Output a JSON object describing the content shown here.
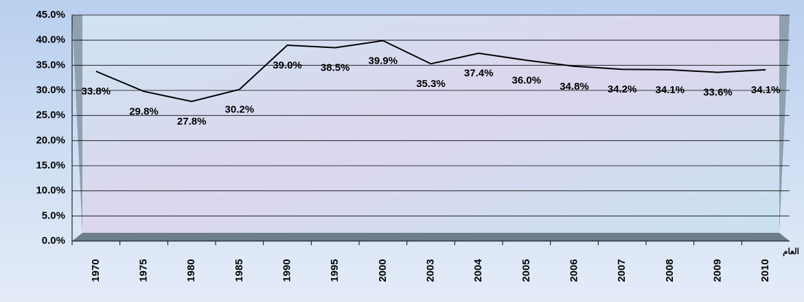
{
  "chart_data": {
    "type": "line",
    "x_label": "العام",
    "categories": [
      "1970",
      "1975",
      "1980",
      "1985",
      "1990",
      "1995",
      "2000",
      "2003",
      "2004",
      "2005",
      "2006",
      "2007",
      "2008",
      "2009",
      "2010"
    ],
    "series": [
      {
        "color": "#000000",
        "values": [
          33.8,
          29.8,
          27.8,
          30.2,
          39.0,
          38.5,
          39.9,
          35.3,
          37.4,
          36.0,
          34.8,
          34.2,
          34.1,
          33.6,
          34.1
        ],
        "value_labels": [
          "33.8%",
          "29.8%",
          "27.8%",
          "30.2%",
          "39.0%",
          "38.5%",
          "39.9%",
          "35.3%",
          "37.4%",
          "36.0%",
          "34.8%",
          "34.2%",
          "34.1%",
          "33.6%",
          "34.1%"
        ]
      }
    ],
    "ylim": [
      0,
      45
    ],
    "yticks": [
      {
        "value": 0,
        "label": "0.0%"
      },
      {
        "value": 5,
        "label": "5.0%"
      },
      {
        "value": 10,
        "label": "10.0%"
      },
      {
        "value": 15,
        "label": "15.0%"
      },
      {
        "value": 20,
        "label": "20.0%"
      },
      {
        "value": 25,
        "label": "25.0%"
      },
      {
        "value": 30,
        "label": "30.0%"
      },
      {
        "value": 35,
        "label": "35.0%"
      },
      {
        "value": 40,
        "label": "40.0%"
      },
      {
        "value": 45,
        "label": "45.0%"
      }
    ],
    "grid": true
  }
}
